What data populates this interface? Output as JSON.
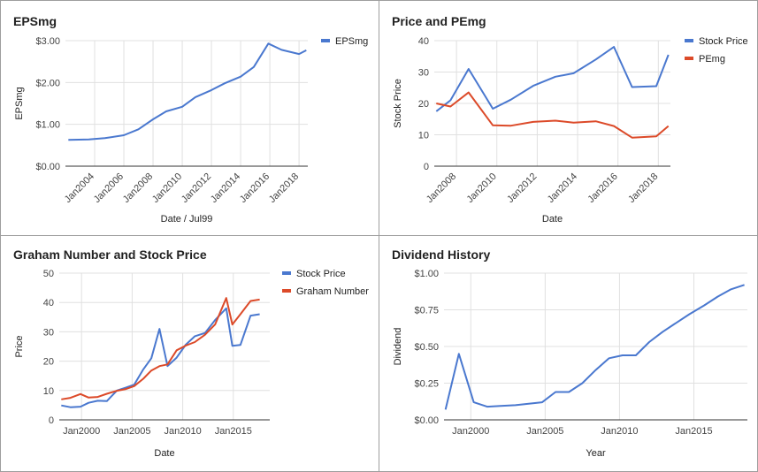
{
  "colors": {
    "blue": "#4a78cf",
    "red": "#dc4a29"
  },
  "chart_data": [
    {
      "type": "line",
      "title": "EPSmg",
      "xlabel": "Date / Jul99",
      "ylabel": "EPSmg",
      "xlim": [
        2002.0,
        2018.6
      ],
      "ylim": [
        0,
        3
      ],
      "yticks": [
        0,
        1,
        2,
        3
      ],
      "ytick_labels": [
        "$0.00",
        "$1.00",
        "$2.00",
        "$3.00"
      ],
      "xticks": [
        2004,
        2006,
        2008,
        2010,
        2012,
        2014,
        2016,
        2018
      ],
      "xtick_labels": [
        "Jan2004",
        "Jan2006",
        "Jan2008",
        "Jan2010",
        "Jan2012",
        "Jan2014",
        "Jan2016",
        "Jan2018"
      ],
      "legend_position": "top-right",
      "series": [
        {
          "name": "EPSmg",
          "color": "#4a78cf",
          "x": [
            2002.2,
            2003.6,
            2004.7,
            2006.0,
            2007.0,
            2008.0,
            2008.9,
            2010.0,
            2010.9,
            2012.0,
            2012.9,
            2014.0,
            2014.9,
            2015.9,
            2016.8,
            2018.0,
            2018.5
          ],
          "y": [
            0.63,
            0.64,
            0.67,
            0.74,
            0.88,
            1.12,
            1.31,
            1.42,
            1.65,
            1.82,
            1.98,
            2.14,
            2.37,
            2.93,
            2.78,
            2.68,
            2.77
          ]
        }
      ]
    },
    {
      "type": "line",
      "title": "Price and PEmg",
      "xlabel": "Date",
      "ylabel": "Stock Price",
      "xlim": [
        2006.9,
        2018.6
      ],
      "ylim": [
        0,
        40
      ],
      "yticks": [
        0,
        10,
        20,
        30,
        40
      ],
      "ytick_labels": [
        "0",
        "10",
        "20",
        "30",
        "40"
      ],
      "xticks": [
        2008,
        2010,
        2012,
        2014,
        2016,
        2018
      ],
      "xtick_labels": [
        "Jan2008",
        "Jan2010",
        "Jan2012",
        "Jan2014",
        "Jan2016",
        "Jan2018"
      ],
      "legend_position": "top-right",
      "series": [
        {
          "name": "Stock Price",
          "color": "#4a78cf",
          "x": [
            2007.0,
            2007.7,
            2008.6,
            2009.8,
            2010.7,
            2011.8,
            2012.9,
            2013.8,
            2014.9,
            2015.8,
            2016.7,
            2017.9,
            2018.5
          ],
          "y": [
            17.5,
            21,
            31,
            18.3,
            21.2,
            25.6,
            28.5,
            29.6,
            34,
            38,
            25.2,
            25.5,
            35.5
          ]
        },
        {
          "name": "PEmg",
          "color": "#dc4a29",
          "x": [
            2007.0,
            2007.7,
            2008.6,
            2009.8,
            2010.7,
            2011.8,
            2012.9,
            2013.8,
            2014.9,
            2015.8,
            2016.7,
            2017.9,
            2018.5
          ],
          "y": [
            20,
            19,
            23.5,
            13,
            12.9,
            14.1,
            14.5,
            13.9,
            14.3,
            12.8,
            9.1,
            9.5,
            12.8
          ]
        }
      ]
    },
    {
      "type": "line",
      "title": "Graham Number and Stock Price",
      "xlabel": "Date",
      "ylabel": "Price",
      "xlim": [
        1997.8,
        2018.6
      ],
      "ylim": [
        0,
        50
      ],
      "yticks": [
        0,
        10,
        20,
        30,
        40,
        50
      ],
      "ytick_labels": [
        "0",
        "10",
        "20",
        "30",
        "40",
        "50"
      ],
      "xticks": [
        2000,
        2005,
        2010,
        2015
      ],
      "xtick_labels": [
        "Jan2000",
        "Jan2005",
        "Jan2010",
        "Jan2015"
      ],
      "legend_position": "top-right",
      "series": [
        {
          "name": "Stock Price",
          "color": "#4a78cf",
          "x": [
            1998.0,
            1998.9,
            1999.9,
            2000.7,
            2001.6,
            2002.5,
            2003.5,
            2004.4,
            2005.2,
            2006.1,
            2006.9,
            2007.7,
            2008.5,
            2009.4,
            2010.3,
            2011.2,
            2012.2,
            2013.2,
            2014.3,
            2014.9,
            2015.7,
            2016.7,
            2017.6
          ],
          "y": [
            4.9,
            4.3,
            4.5,
            5.8,
            6.5,
            6.4,
            10.0,
            11.0,
            12.0,
            17.2,
            21.0,
            31.0,
            18.3,
            21.2,
            25.6,
            28.5,
            29.6,
            34.0,
            38.0,
            25.2,
            25.5,
            35.5,
            36.0
          ]
        },
        {
          "name": "Graham Number",
          "color": "#dc4a29",
          "x": [
            1998.0,
            1998.9,
            1999.9,
            2000.7,
            2001.6,
            2002.5,
            2003.5,
            2004.4,
            2005.2,
            2006.1,
            2006.9,
            2007.7,
            2008.5,
            2009.4,
            2010.3,
            2011.2,
            2012.2,
            2013.2,
            2014.3,
            2014.9,
            2015.7,
            2016.7,
            2017.6
          ],
          "y": [
            7.0,
            7.5,
            8.8,
            7.6,
            7.8,
            8.9,
            9.9,
            10.5,
            11.5,
            14.0,
            16.8,
            18.3,
            18.9,
            23.7,
            25.3,
            26.5,
            29.0,
            32.5,
            41.5,
            32.5,
            36.0,
            40.5,
            41.0
          ]
        }
      ]
    },
    {
      "type": "line",
      "title": "Dividend History",
      "xlabel": "Year",
      "ylabel": "Dividend",
      "xlim": [
        1998.2,
        2018.6
      ],
      "ylim": [
        0,
        1
      ],
      "yticks": [
        0,
        0.25,
        0.5,
        0.75,
        1.0
      ],
      "ytick_labels": [
        "$0.00",
        "$0.25",
        "$0.50",
        "$0.75",
        "$1.00"
      ],
      "xticks": [
        2000,
        2005,
        2010,
        2015
      ],
      "xtick_labels": [
        "Jan2000",
        "Jan2005",
        "Jan2010",
        "Jan2015"
      ],
      "series": [
        {
          "name": "",
          "color": "#4a78cf",
          "x": [
            1998.3,
            1999.2,
            2000.2,
            2001.1,
            2002.0,
            2003.0,
            2003.9,
            2004.8,
            2005.7,
            2006.6,
            2007.5,
            2008.4,
            2009.3,
            2010.2,
            2011.1,
            2012.0,
            2012.9,
            2013.8,
            2014.7,
            2015.7,
            2016.6,
            2017.5,
            2018.4
          ],
          "y": [
            0.07,
            0.45,
            0.12,
            0.09,
            0.095,
            0.1,
            0.11,
            0.12,
            0.19,
            0.19,
            0.25,
            0.34,
            0.42,
            0.44,
            0.44,
            0.53,
            0.6,
            0.66,
            0.72,
            0.78,
            0.84,
            0.89,
            0.92
          ]
        }
      ]
    }
  ]
}
